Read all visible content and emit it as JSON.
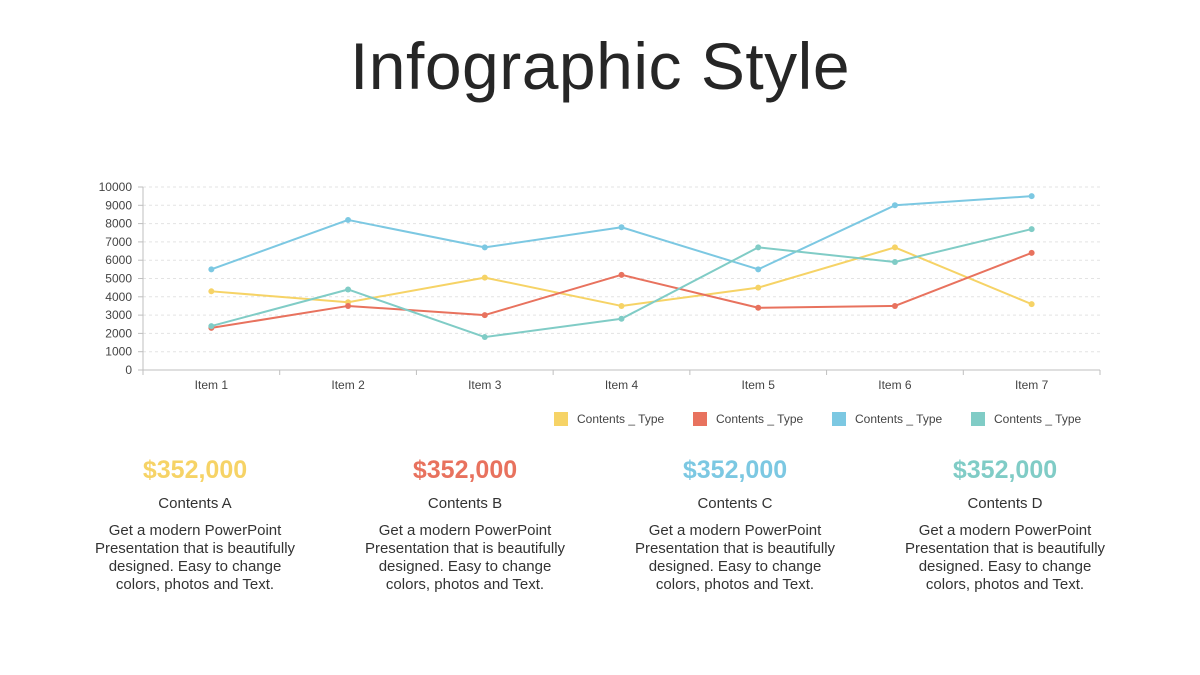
{
  "page": {
    "title": "Infographic Style"
  },
  "chart_data": {
    "type": "line",
    "categories": [
      "Item 1",
      "Item 2",
      "Item 3",
      "Item 4",
      "Item 5",
      "Item 6",
      "Item 7"
    ],
    "ylim": [
      0,
      10000
    ],
    "yticks": [
      0,
      1000,
      2000,
      3000,
      4000,
      5000,
      6000,
      7000,
      8000,
      9000,
      10000
    ],
    "grid": true,
    "legend_position": "bottom-right",
    "series": [
      {
        "name": "Contents _ Type",
        "color": "#F6D366",
        "values": [
          4300,
          3700,
          5050,
          3500,
          4500,
          6700,
          3600
        ]
      },
      {
        "name": "Contents _ Type",
        "color": "#E8725E",
        "values": [
          2300,
          3500,
          3000,
          5200,
          3400,
          3500,
          6400
        ]
      },
      {
        "name": "Contents _ Type",
        "color": "#7CC8E2",
        "values": [
          5500,
          8200,
          6700,
          7800,
          5500,
          9000,
          9500
        ]
      },
      {
        "name": "Contents _ Type",
        "color": "#80CCC6",
        "values": [
          2400,
          4400,
          1800,
          2800,
          6700,
          5900,
          7700
        ]
      }
    ]
  },
  "stats": [
    {
      "value": "$352,000",
      "label": "Contents A",
      "desc_lines": [
        "Get a modern PowerPoint",
        "Presentation that is beautifully",
        "designed. Easy to change",
        "colors, photos and Text."
      ],
      "color": "#F6D366"
    },
    {
      "value": "$352,000",
      "label": "Contents B",
      "desc_lines": [
        "Get a modern PowerPoint",
        "Presentation that is beautifully",
        "designed. Easy to change",
        "colors, photos and Text."
      ],
      "color": "#E8725E"
    },
    {
      "value": "$352,000",
      "label": "Contents C",
      "desc_lines": [
        "Get a modern PowerPoint",
        "Presentation that is beautifully",
        "designed. Easy to change",
        "colors, photos and Text."
      ],
      "color": "#7CC8E2"
    },
    {
      "value": "$352,000",
      "label": "Contents D",
      "desc_lines": [
        "Get a modern PowerPoint",
        "Presentation that is beautifully",
        "designed. Easy to change",
        "colors, photos and Text."
      ],
      "color": "#80CCC6"
    }
  ]
}
